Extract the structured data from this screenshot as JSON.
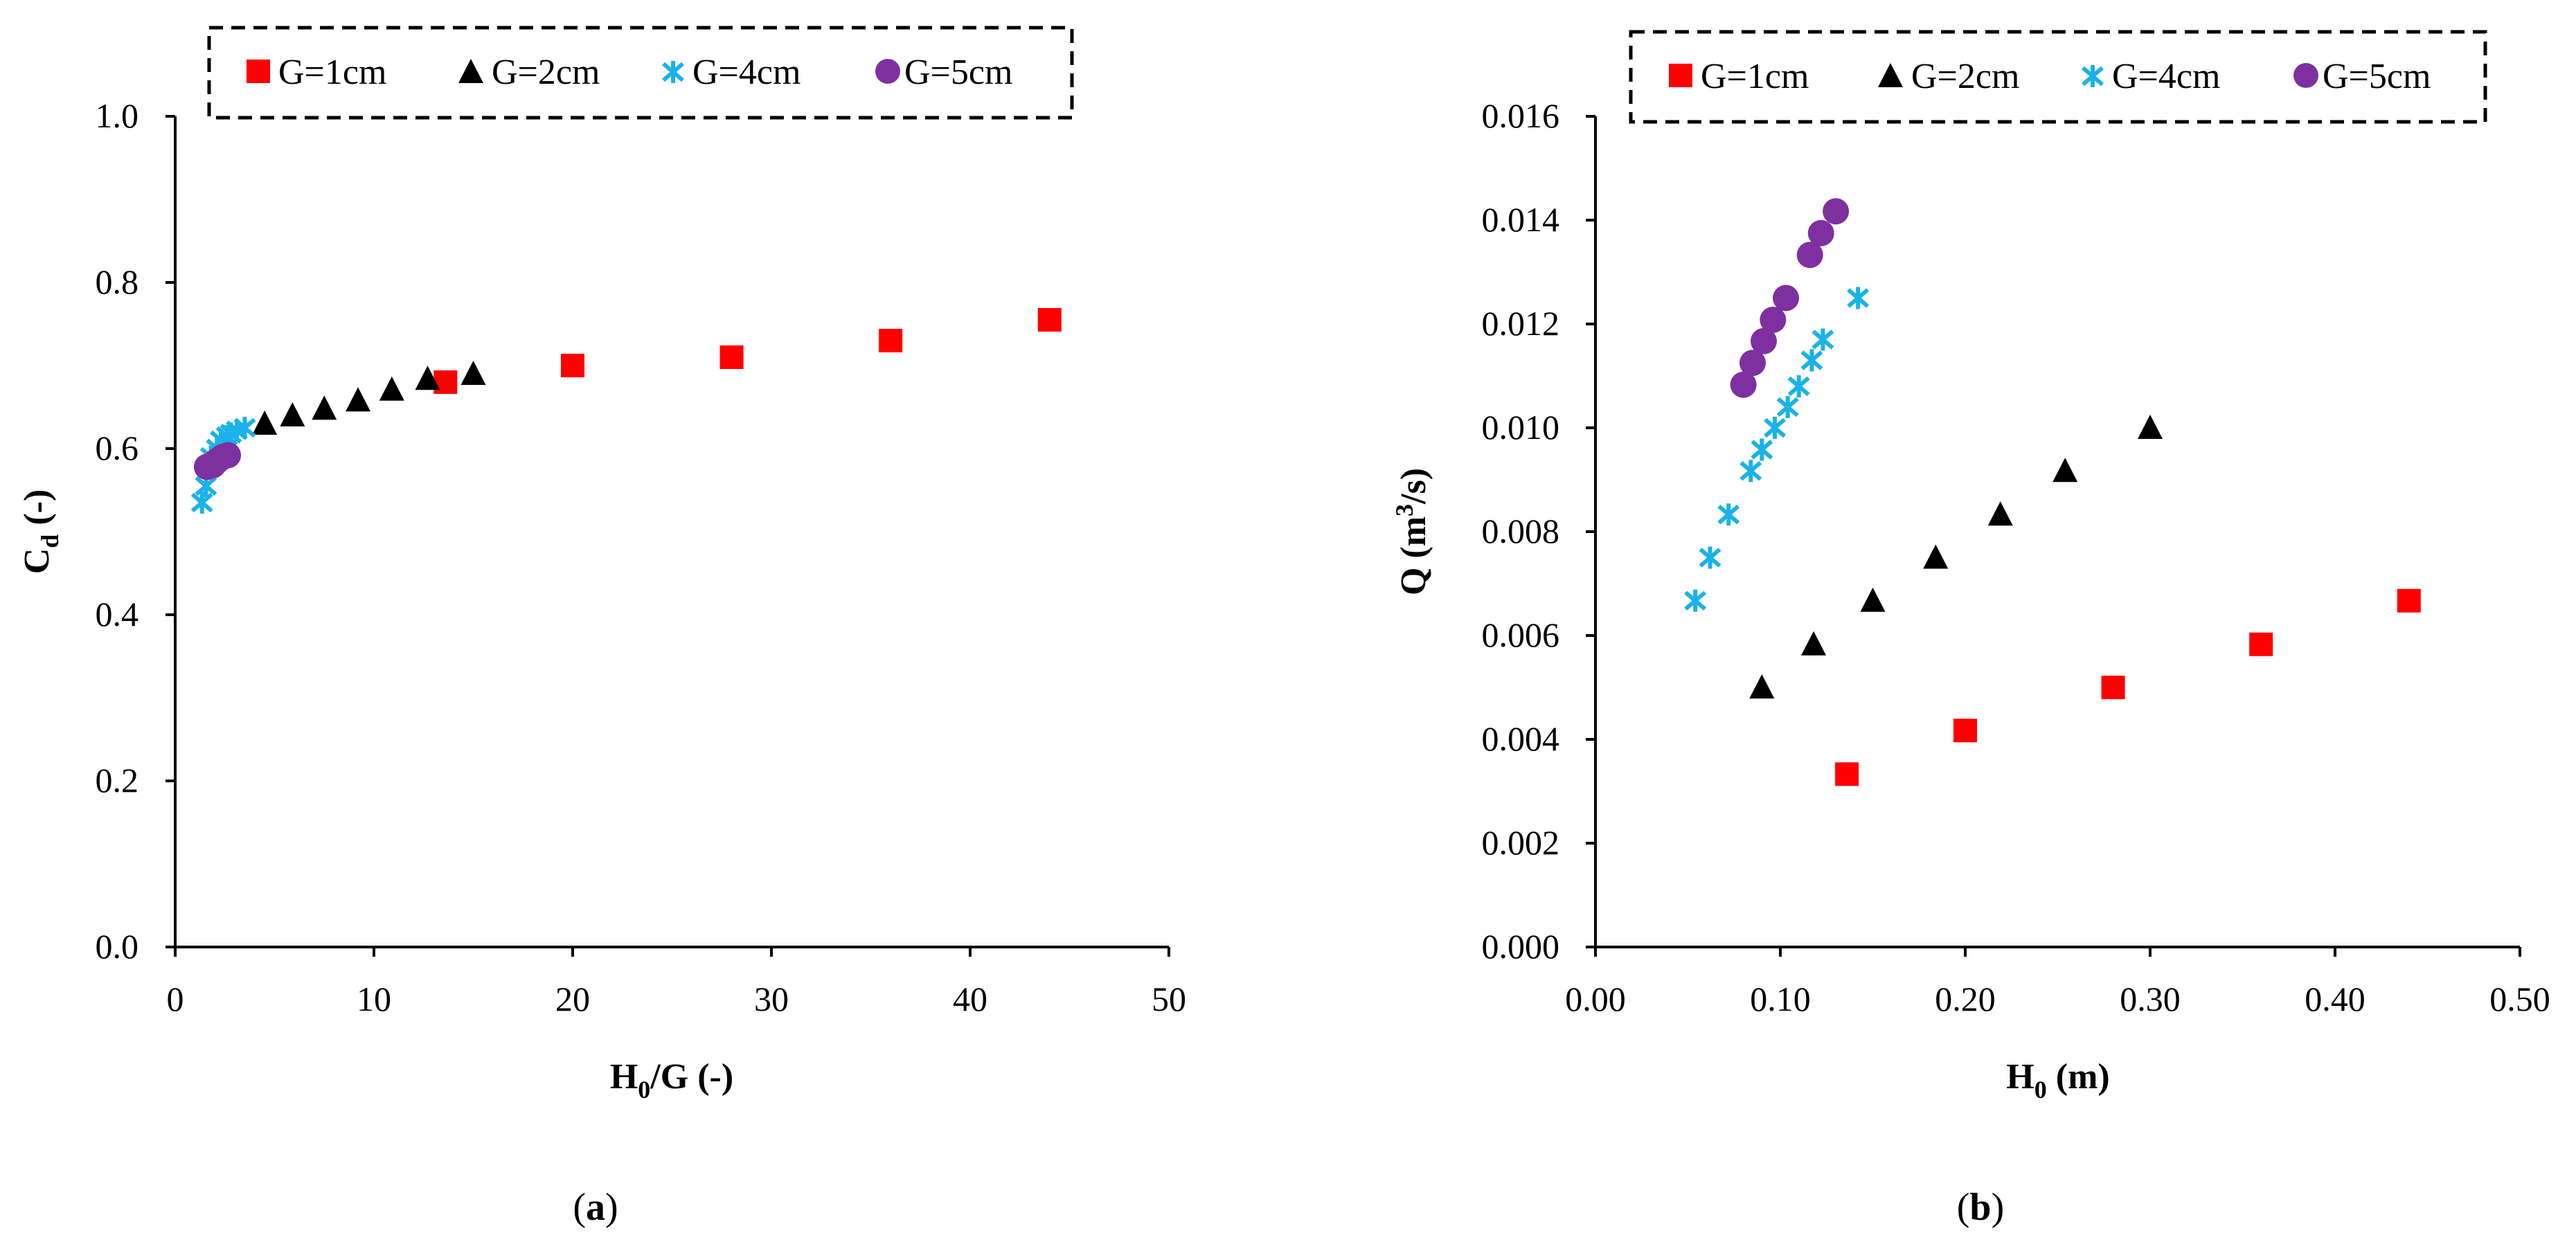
{
  "colors": {
    "g1": "#ff0000",
    "g2": "#000000",
    "g4": "#1ab2e8",
    "g5": "#7e30a0"
  },
  "chart_data": [
    {
      "type": "scatter",
      "id": "a",
      "caption": "(a)",
      "caption_parts": {
        "open": "(",
        "letter": "a",
        "close": ")"
      },
      "xlabel": "H0/G (-)",
      "xlabel_parts": {
        "main": "H",
        "sub": "0",
        "rest": "/G (-)"
      },
      "ylabel": "Cd (-)",
      "ylabel_parts": {
        "main": "C",
        "sub": "d",
        "rest": " (-)"
      },
      "xlim": [
        0,
        50
      ],
      "ylim": [
        0,
        1.0
      ],
      "xticks": [
        "0",
        "10",
        "20",
        "30",
        "40",
        "50"
      ],
      "yticks": [
        "0.0",
        "0.2",
        "0.4",
        "0.6",
        "0.8",
        "1.0"
      ],
      "legend": {
        "placement": "top",
        "entries": [
          "G=1cm",
          "G=2cm",
          "G=4cm",
          "G=5cm"
        ]
      },
      "series": [
        {
          "name": "G=1cm",
          "marker": "square",
          "color": "#ff0000",
          "x": [
            13.6,
            20,
            28,
            36,
            44
          ],
          "y": [
            0.68,
            0.7,
            0.71,
            0.73,
            0.755
          ]
        },
        {
          "name": "G=2cm",
          "marker": "triangle",
          "color": "#000000",
          "x": [
            4.5,
            5.9,
            7.5,
            9.2,
            10.9,
            12.7,
            15.0
          ],
          "y": [
            0.63,
            0.64,
            0.648,
            0.658,
            0.671,
            0.684,
            0.69
          ]
        },
        {
          "name": "G=4cm",
          "marker": "star",
          "color": "#1ab2e8",
          "x": [
            1.35,
            1.55,
            1.8,
            2.1,
            2.3,
            2.6,
            2.8,
            3.1,
            3.5
          ],
          "y": [
            0.535,
            0.555,
            0.59,
            0.6,
            0.61,
            0.615,
            0.618,
            0.622,
            0.625
          ]
        },
        {
          "name": "G=5cm",
          "marker": "circle",
          "color": "#7e30a0",
          "x": [
            1.6,
            1.9,
            2.1,
            2.4,
            2.65
          ],
          "y": [
            0.578,
            0.58,
            0.585,
            0.59,
            0.592
          ]
        }
      ]
    },
    {
      "type": "scatter",
      "id": "b",
      "caption": "(b)",
      "caption_parts": {
        "open": "(",
        "letter": "b",
        "close": ")"
      },
      "xlabel": "H0 (m)",
      "xlabel_parts": {
        "main": "H",
        "sub": "0",
        "rest": " (m)"
      },
      "ylabel": "Q (m3/s)",
      "ylabel_parts": {
        "main": "Q (m",
        "sup": "3",
        "rest": "/s)"
      },
      "xlim": [
        0,
        0.5
      ],
      "ylim": [
        0,
        0.016
      ],
      "xticks": [
        "0.00",
        "0.10",
        "0.20",
        "0.30",
        "0.40",
        "0.50"
      ],
      "yticks": [
        "0.000",
        "0.002",
        "0.004",
        "0.006",
        "0.008",
        "0.010",
        "0.012",
        "0.014",
        "0.016"
      ],
      "legend": {
        "placement": "top",
        "entries": [
          "G=1cm",
          "G=2cm",
          "G=4cm",
          "G=5cm"
        ]
      },
      "series": [
        {
          "name": "G=1cm",
          "marker": "square",
          "color": "#ff0000",
          "x": [
            0.136,
            0.2,
            0.28,
            0.36,
            0.44
          ],
          "y": [
            0.00333,
            0.00417,
            0.005,
            0.00583,
            0.00667
          ]
        },
        {
          "name": "G=2cm",
          "marker": "triangle",
          "color": "#000000",
          "x": [
            0.09,
            0.118,
            0.15,
            0.184,
            0.219,
            0.254,
            0.3
          ],
          "y": [
            0.005,
            0.00583,
            0.00667,
            0.0075,
            0.00833,
            0.00917,
            0.01
          ]
        },
        {
          "name": "G=4cm",
          "marker": "star",
          "color": "#1ab2e8",
          "x": [
            0.054,
            0.062,
            0.072,
            0.084,
            0.09,
            0.097,
            0.104,
            0.11,
            0.117,
            0.123,
            0.142
          ],
          "y": [
            0.00667,
            0.0075,
            0.00833,
            0.00917,
            0.00958,
            0.01,
            0.0104,
            0.0108,
            0.0113,
            0.0117,
            0.0125
          ]
        },
        {
          "name": "G=5cm",
          "marker": "circle",
          "color": "#7e30a0",
          "x": [
            0.08,
            0.085,
            0.091,
            0.096,
            0.103,
            0.116,
            0.122,
            0.13
          ],
          "y": [
            0.01083,
            0.01125,
            0.01167,
            0.01208,
            0.0125,
            0.01333,
            0.01375,
            0.01417
          ]
        }
      ]
    }
  ]
}
